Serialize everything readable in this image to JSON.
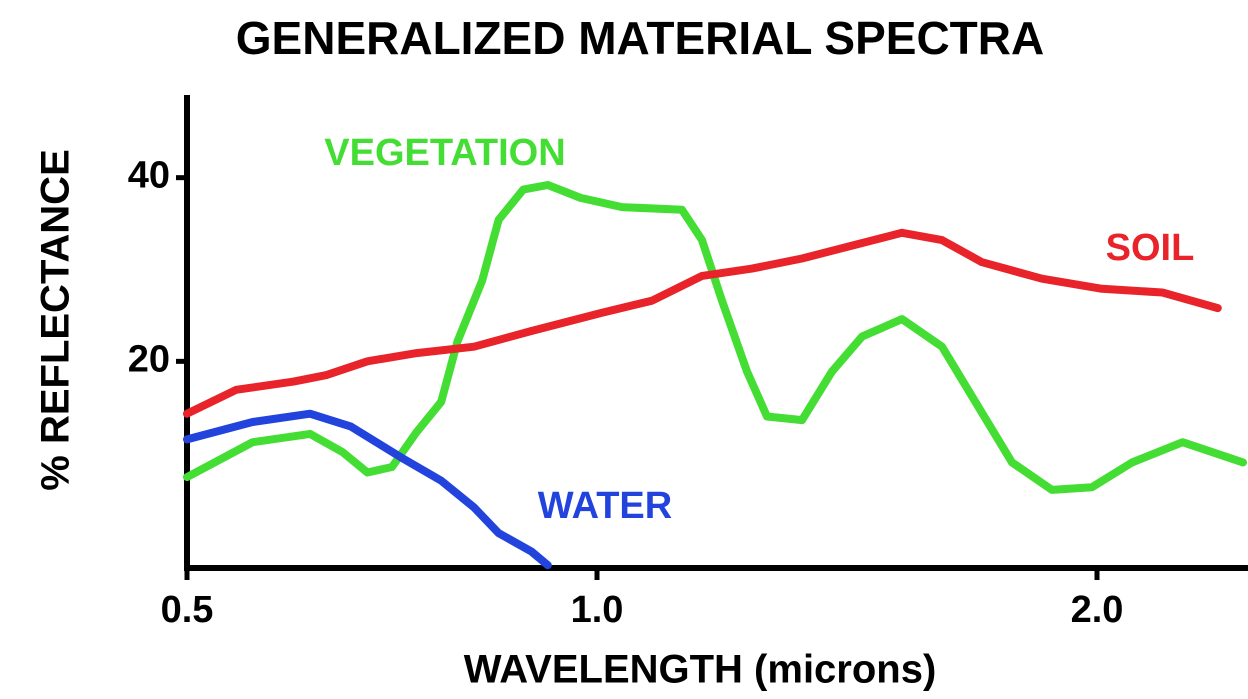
{
  "chart_data": {
    "type": "line",
    "title": "GENERALIZED MATERIAL SPECTRA",
    "xlabel": "WAVELENGTH (microns)",
    "ylabel": "% REFLECTANCE",
    "xlim": [
      0.5,
      2.3
    ],
    "ylim": [
      -2.5,
      49
    ],
    "xticks": [
      0.5,
      {
        "value": 1,
        "label": "1.0"
      },
      {
        "value": 2,
        "label": "2.0"
      }
    ],
    "yticks": [
      20,
      40
    ],
    "grid": false,
    "series": [
      {
        "name": "VEGETATION",
        "color": "#44dd33",
        "x": [
          0.5,
          0.58,
          0.65,
          0.69,
          0.72,
          0.75,
          0.78,
          0.81,
          0.83,
          0.86,
          0.88,
          0.91,
          0.94,
          0.98,
          1.05,
          1.17,
          1.21,
          1.25,
          1.3,
          1.34,
          1.41,
          1.47,
          1.53,
          1.61,
          1.69,
          1.75,
          1.83,
          1.91,
          1.99,
          2.07,
          2.17,
          2.29
        ],
        "values": [
          7.4,
          11.2,
          12.1,
          10.1,
          7.9,
          8.5,
          12.3,
          15.6,
          22.2,
          28.8,
          35.4,
          38.7,
          39.2,
          37.8,
          36.8,
          36.5,
          33.2,
          26.6,
          18.9,
          14.0,
          13.6,
          18.9,
          22.7,
          24.6,
          21.6,
          16.2,
          9.0,
          6.0,
          6.3,
          9.0,
          11.2,
          9.0
        ]
      },
      {
        "name": "SOIL",
        "color": "#e8242a",
        "x": [
          0.5,
          0.56,
          0.63,
          0.67,
          0.72,
          0.78,
          0.85,
          0.92,
          1.01,
          1.11,
          1.21,
          1.31,
          1.41,
          1.51,
          1.61,
          1.69,
          1.77,
          1.89,
          2.01,
          2.13,
          2.24
        ],
        "values": [
          14.3,
          16.9,
          17.8,
          18.5,
          20.0,
          20.9,
          21.6,
          23.3,
          25.3,
          26.6,
          29.3,
          30.1,
          31.2,
          32.6,
          34.0,
          33.2,
          30.8,
          29.0,
          27.9,
          27.5,
          25.8
        ]
      },
      {
        "name": "WATER",
        "color": "#2244dd",
        "x": [
          0.5,
          0.58,
          0.65,
          0.7,
          0.76,
          0.81,
          0.85,
          0.88,
          0.92,
          0.94
        ],
        "values": [
          11.5,
          13.4,
          14.3,
          12.9,
          9.6,
          7.0,
          4.1,
          1.3,
          -0.7,
          -2.2
        ]
      }
    ]
  }
}
